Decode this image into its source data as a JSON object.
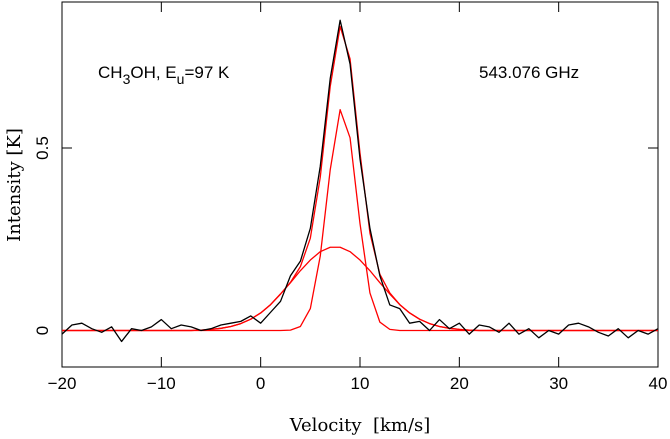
{
  "chart_data": {
    "type": "line",
    "xlabel": "Velocity  [km/s]",
    "ylabel": "Intensity [K]",
    "annotations": [
      [
        {
          "text": "CH"
        },
        {
          "text": "3",
          "sub": true
        },
        {
          "text": "OH, E"
        },
        {
          "text": "u",
          "sub": true
        },
        {
          "text": "=97 K"
        }
      ],
      [
        {
          "text": "543.076 GHz"
        }
      ]
    ],
    "x": [
      -20,
      -19,
      -18,
      -17,
      -16,
      -15,
      -14,
      -13,
      -12,
      -11,
      -10,
      -9,
      -8,
      -7,
      -6,
      -5,
      -4,
      -3,
      -2,
      -1,
      0,
      1,
      2,
      3,
      4,
      5,
      6,
      7,
      8,
      9,
      10,
      11,
      12,
      13,
      14,
      15,
      16,
      17,
      18,
      19,
      20,
      21,
      22,
      23,
      24,
      25,
      26,
      27,
      28,
      29,
      30,
      31,
      32,
      33,
      34,
      35,
      36,
      37,
      38,
      39,
      40
    ],
    "series": [
      {
        "color": "#000000",
        "values": [
          -0.01,
          0.015,
          0.02,
          0.005,
          -0.005,
          0.01,
          -0.03,
          0.005,
          0.0,
          0.01,
          0.03,
          0.005,
          0.015,
          0.01,
          0.0,
          0.005,
          0.015,
          0.02,
          0.025,
          0.04,
          0.02,
          0.05,
          0.08,
          0.15,
          0.19,
          0.28,
          0.45,
          0.69,
          0.85,
          0.73,
          0.47,
          0.28,
          0.15,
          0.07,
          0.06,
          0.02,
          0.025,
          0.0,
          0.03,
          0.005,
          0.02,
          -0.01,
          0.015,
          0.01,
          -0.005,
          0.02,
          -0.01,
          0.005,
          -0.02,
          0.0,
          -0.01,
          0.015,
          0.02,
          0.01,
          -0.005,
          -0.015,
          0.005,
          -0.02,
          0.0,
          -0.01,
          0.005
        ]
      },
      {
        "color": "#ff0000",
        "values": [
          0,
          0,
          0,
          0,
          0,
          0,
          0,
          0,
          0,
          0,
          0,
          0,
          0,
          0,
          0.001,
          0.003,
          0.006,
          0.011,
          0.019,
          0.031,
          0.048,
          0.071,
          0.1,
          0.132,
          0.175,
          0.253,
          0.42,
          0.668,
          0.833,
          0.744,
          0.486,
          0.267,
          0.154,
          0.103,
          0.071,
          0.048,
          0.031,
          0.019,
          0.011,
          0.006,
          0.003,
          0.001,
          0,
          0,
          0,
          0,
          0,
          0,
          0,
          0,
          0,
          0,
          0,
          0,
          0,
          0,
          0,
          0,
          0,
          0,
          0
        ]
      },
      {
        "color": "#ff0000",
        "values": [
          0,
          0,
          0,
          0,
          0,
          0,
          0,
          0,
          0,
          0,
          0,
          0,
          0,
          0,
          0,
          0,
          0,
          0,
          0,
          0,
          0,
          0,
          0,
          0.001,
          0.011,
          0.06,
          0.204,
          0.44,
          0.605,
          0.528,
          0.293,
          0.103,
          0.023,
          0.003,
          0,
          0,
          0,
          0,
          0,
          0,
          0,
          0,
          0,
          0,
          0,
          0,
          0,
          0,
          0,
          0,
          0,
          0,
          0,
          0,
          0,
          0,
          0,
          0,
          0,
          0,
          0
        ]
      },
      {
        "color": "#ff0000",
        "values": [
          0,
          0,
          0,
          0,
          0,
          0,
          0,
          0,
          0,
          0,
          0,
          0,
          0,
          0,
          0.001,
          0.003,
          0.006,
          0.011,
          0.019,
          0.031,
          0.048,
          0.071,
          0.1,
          0.131,
          0.164,
          0.193,
          0.216,
          0.228,
          0.228,
          0.216,
          0.193,
          0.164,
          0.131,
          0.1,
          0.071,
          0.048,
          0.031,
          0.019,
          0.011,
          0.006,
          0.003,
          0.001,
          0,
          0,
          0,
          0,
          0,
          0,
          0,
          0,
          0,
          0,
          0,
          0,
          0,
          0,
          0,
          0,
          0,
          0,
          0
        ]
      }
    ],
    "xlim": [
      -20,
      40
    ],
    "xticks": [
      {
        "value": -20,
        "label": "−20"
      },
      {
        "value": -10,
        "label": "−10"
      },
      0,
      10,
      20,
      30,
      40
    ],
    "ylim": [
      -0.1,
      0.9
    ],
    "yticks": [
      0,
      0.5
    ]
  }
}
